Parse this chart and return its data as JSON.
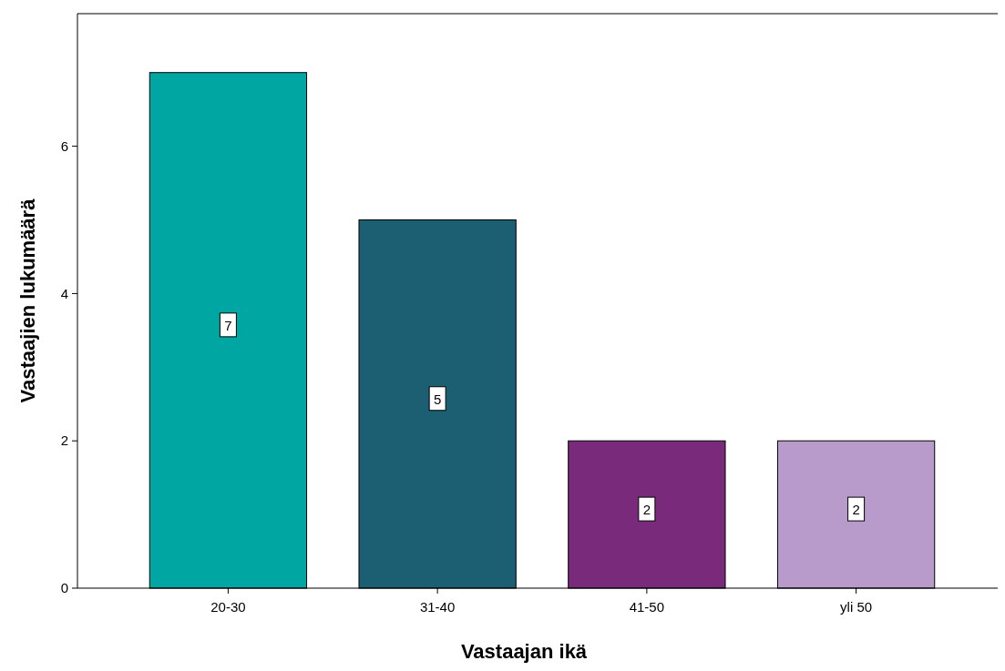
{
  "chart_data": {
    "type": "bar",
    "xlabel": "Vastaajan ikä",
    "ylabel": "Vastaajien lukumäärä",
    "categories": [
      "20-30",
      "31-40",
      "41-50",
      "yli 50"
    ],
    "values": [
      7,
      5,
      2,
      2
    ],
    "colors": [
      "#00a6a2",
      "#1c5e72",
      "#7a2a7b",
      "#b89bca"
    ],
    "ylim": [
      0,
      7.8
    ],
    "yticks": [
      0,
      2,
      4,
      6
    ],
    "data_labels": true
  }
}
